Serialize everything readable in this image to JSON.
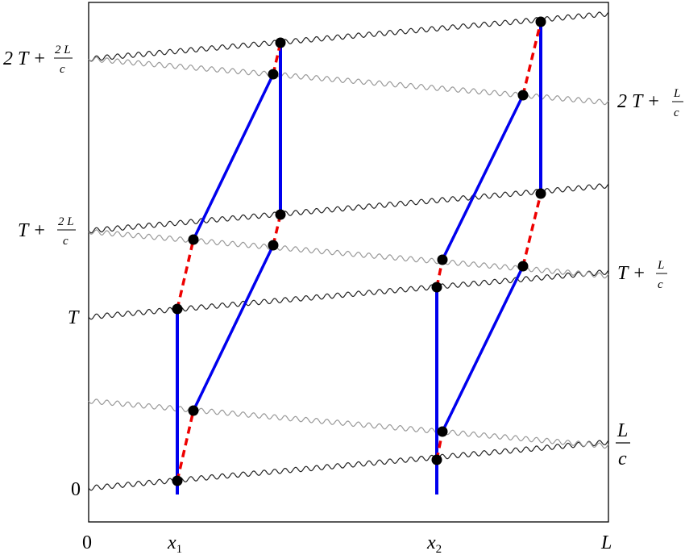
{
  "left_labels": [
    {
      "main": "2 T +",
      "num": "2 L",
      "den": "c"
    },
    {
      "main": "T +",
      "num": "2 L",
      "den": "c"
    },
    {
      "main": "T"
    },
    {
      "main": "0"
    }
  ],
  "right_labels": [
    {
      "main": "2 T +",
      "num": "L",
      "den": "c"
    },
    {
      "main": "T +",
      "num": "L",
      "den": "c"
    },
    {
      "num": "L",
      "den": "c"
    }
  ],
  "bottom_labels": [
    {
      "main": "0"
    },
    {
      "main": "x",
      "sub": "1"
    },
    {
      "main": "x",
      "sub": "2"
    },
    {
      "main": "L"
    }
  ]
}
